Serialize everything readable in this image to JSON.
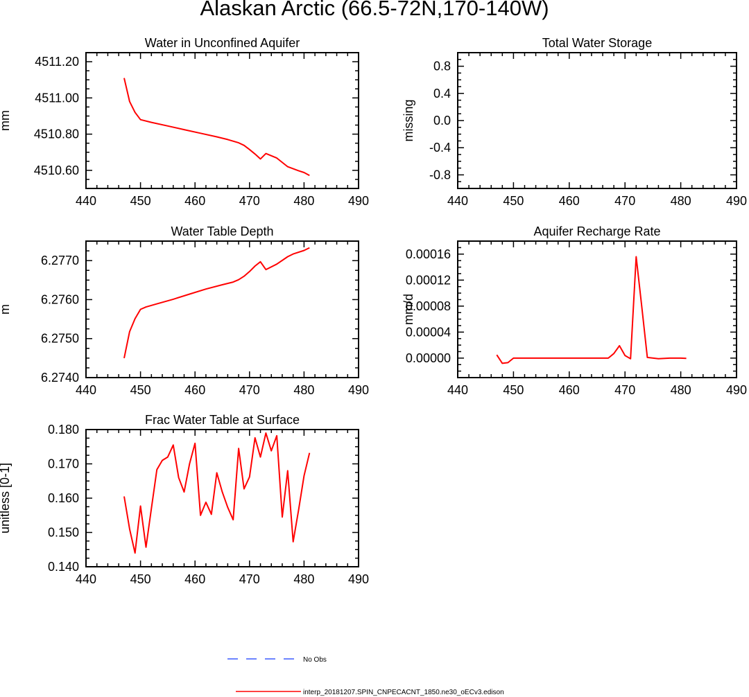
{
  "title": "Alaskan Arctic (66.5-72N,170-140W)",
  "chart_data": [
    {
      "type": "line",
      "title": "Water in Unconfined Aquifer",
      "ylabel": "mm",
      "xlim": [
        440,
        490
      ],
      "ylim": [
        4510.5,
        4511.25
      ],
      "xticks": [
        440,
        450,
        460,
        470,
        480,
        490
      ],
      "xtick_labels": [
        "440",
        "450",
        "460",
        "470",
        "480",
        "490"
      ],
      "yticks": [
        4510.6,
        4510.8,
        4511.0,
        4511.2
      ],
      "ytick_labels": [
        "4510.60",
        "4510.80",
        "4511.00",
        "4511.20"
      ],
      "series": [
        {
          "x": [
            447,
            448,
            449,
            450,
            452,
            455,
            458,
            461,
            464,
            466,
            468,
            469,
            470,
            471,
            472,
            473,
            475,
            477,
            479,
            480,
            481
          ],
          "y": [
            4511.11,
            4510.98,
            4510.92,
            4510.88,
            4510.865,
            4510.845,
            4510.825,
            4510.805,
            4510.785,
            4510.77,
            4510.752,
            4510.738,
            4510.715,
            4510.69,
            4510.663,
            4510.693,
            4510.668,
            4510.62,
            4510.598,
            4510.588,
            4510.572
          ]
        }
      ]
    },
    {
      "type": "line",
      "title": "Total Water Storage",
      "ylabel": "missing",
      "xlim": [
        440,
        490
      ],
      "ylim": [
        -1.0,
        1.0
      ],
      "xticks": [
        440,
        450,
        460,
        470,
        480,
        490
      ],
      "xtick_labels": [
        "440",
        "450",
        "460",
        "470",
        "480",
        "490"
      ],
      "yticks": [
        -0.8,
        -0.4,
        0.0,
        0.4,
        0.8
      ],
      "ytick_labels": [
        "-0.8",
        "-0.4",
        "0.0",
        "0.4",
        "0.8"
      ],
      "series": []
    },
    {
      "type": "line",
      "title": "Water Table Depth",
      "ylabel": "m",
      "xlim": [
        440,
        490
      ],
      "ylim": [
        6.274,
        6.2775
      ],
      "xticks": [
        440,
        450,
        460,
        470,
        480,
        490
      ],
      "xtick_labels": [
        "440",
        "450",
        "460",
        "470",
        "480",
        "490"
      ],
      "yticks": [
        6.274,
        6.275,
        6.276,
        6.277
      ],
      "ytick_labels": [
        "6.2740",
        "6.2750",
        "6.2760",
        "6.2770"
      ],
      "series": [
        {
          "x": [
            447,
            448,
            449,
            450,
            451,
            453,
            456,
            459,
            462,
            465,
            467,
            468,
            469,
            470,
            471,
            472,
            473,
            475,
            477,
            478,
            480,
            481
          ],
          "y": [
            6.2745,
            6.27518,
            6.27551,
            6.27575,
            6.27581,
            6.27589,
            6.27601,
            6.27614,
            6.27627,
            6.27638,
            6.27645,
            6.27651,
            6.2766,
            6.27672,
            6.27686,
            6.27697,
            6.27677,
            6.27691,
            6.2771,
            6.27717,
            6.27726,
            6.27733
          ]
        }
      ]
    },
    {
      "type": "line",
      "title": "Aquifer Recharge Rate",
      "ylabel": "mm/d",
      "xlim": [
        440,
        490
      ],
      "ylim": [
        -3e-05,
        0.00018
      ],
      "xticks": [
        440,
        450,
        460,
        470,
        480,
        490
      ],
      "xtick_labels": [
        "440",
        "450",
        "460",
        "470",
        "480",
        "490"
      ],
      "yticks": [
        0.0,
        4e-05,
        8e-05,
        0.00012,
        0.00016
      ],
      "ytick_labels": [
        "0.00000",
        "0.00004",
        "0.00008",
        "0.00012",
        "0.00016"
      ],
      "series": [
        {
          "x": [
            447,
            448,
            449,
            450,
            455,
            460,
            465,
            467,
            468,
            469,
            470,
            471,
            472,
            473,
            474,
            476,
            478,
            480,
            481
          ],
          "y": [
            5e-06,
            -8e-06,
            -7e-06,
            0.0,
            0.0,
            0.0,
            0.0,
            0.0,
            7e-06,
            1.9e-05,
            4e-06,
            -1e-06,
            0.000156,
            8e-05,
            1e-06,
            -1e-06,
            0.0,
            0.0,
            -5e-07
          ]
        }
      ]
    },
    {
      "type": "line",
      "title": "Frac Water Table at Surface",
      "ylabel": "unitless [0-1]",
      "xlim": [
        440,
        490
      ],
      "ylim": [
        0.14,
        0.18
      ],
      "xticks": [
        440,
        450,
        460,
        470,
        480,
        490
      ],
      "xtick_labels": [
        "440",
        "450",
        "460",
        "470",
        "480",
        "490"
      ],
      "yticks": [
        0.14,
        0.15,
        0.16,
        0.17,
        0.18
      ],
      "ytick_labels": [
        "0.140",
        "0.150",
        "0.160",
        "0.170",
        "0.180"
      ],
      "series": [
        {
          "x": [
            447,
            448,
            449,
            450,
            451,
            452,
            453,
            454,
            455,
            456,
            457,
            458,
            459,
            460,
            461,
            462,
            463,
            464,
            465,
            466,
            467,
            468,
            469,
            470,
            471,
            472,
            473,
            474,
            475,
            476,
            477,
            478,
            479,
            480,
            481
          ],
          "y": [
            0.1605,
            0.151,
            0.144,
            0.1577,
            0.1457,
            0.157,
            0.1683,
            0.171,
            0.172,
            0.1755,
            0.166,
            0.1618,
            0.17,
            0.176,
            0.155,
            0.1588,
            0.1553,
            0.1674,
            0.1618,
            0.1573,
            0.1537,
            0.1745,
            0.1627,
            0.1662,
            0.1776,
            0.172,
            0.179,
            0.1738,
            0.1782,
            0.1545,
            0.168,
            0.1473,
            0.1565,
            0.1665,
            0.1732
          ]
        }
      ]
    }
  ],
  "legend": [
    {
      "label": "No Obs",
      "color": "#3b5bff",
      "style": "dashed"
    },
    {
      "label": "interp_20181207.SPIN_CNPECACNT_1850.ne30_oECv3.edison",
      "color": "#ff0000",
      "style": "solid"
    }
  ],
  "colors": {
    "line": "#ff0000",
    "axis": "#000000",
    "no_obs": "#3b5bff"
  }
}
